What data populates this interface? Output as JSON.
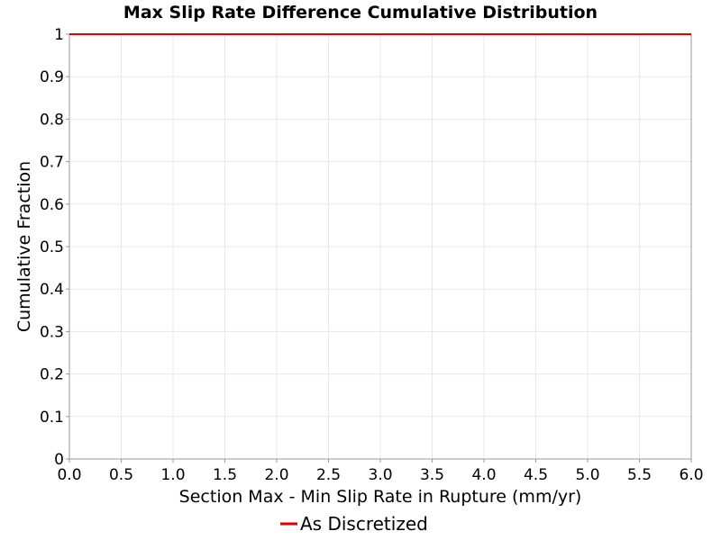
{
  "chart_data": {
    "type": "line",
    "title": "Max Slip Rate Difference Cumulative Distribution",
    "xlabel": "Section Max - Min Slip Rate in Rupture (mm/yr)",
    "ylabel": "Cumulative Fraction",
    "xlim": [
      0,
      6
    ],
    "ylim": [
      0,
      1
    ],
    "x_ticks": [
      "0.0",
      "0.5",
      "1.0",
      "1.5",
      "2.0",
      "2.5",
      "3.0",
      "3.5",
      "4.0",
      "4.5",
      "5.0",
      "5.5",
      "6.0"
    ],
    "y_ticks": [
      "0",
      "0.1",
      "0.2",
      "0.3",
      "0.4",
      "0.5",
      "0.6",
      "0.7",
      "0.8",
      "0.9",
      "1"
    ],
    "grid": true,
    "legend_position": "bottom",
    "series": [
      {
        "name": "As Discretized",
        "color": "#e00000",
        "x": [
          0,
          6
        ],
        "y": [
          1,
          1
        ]
      }
    ]
  }
}
